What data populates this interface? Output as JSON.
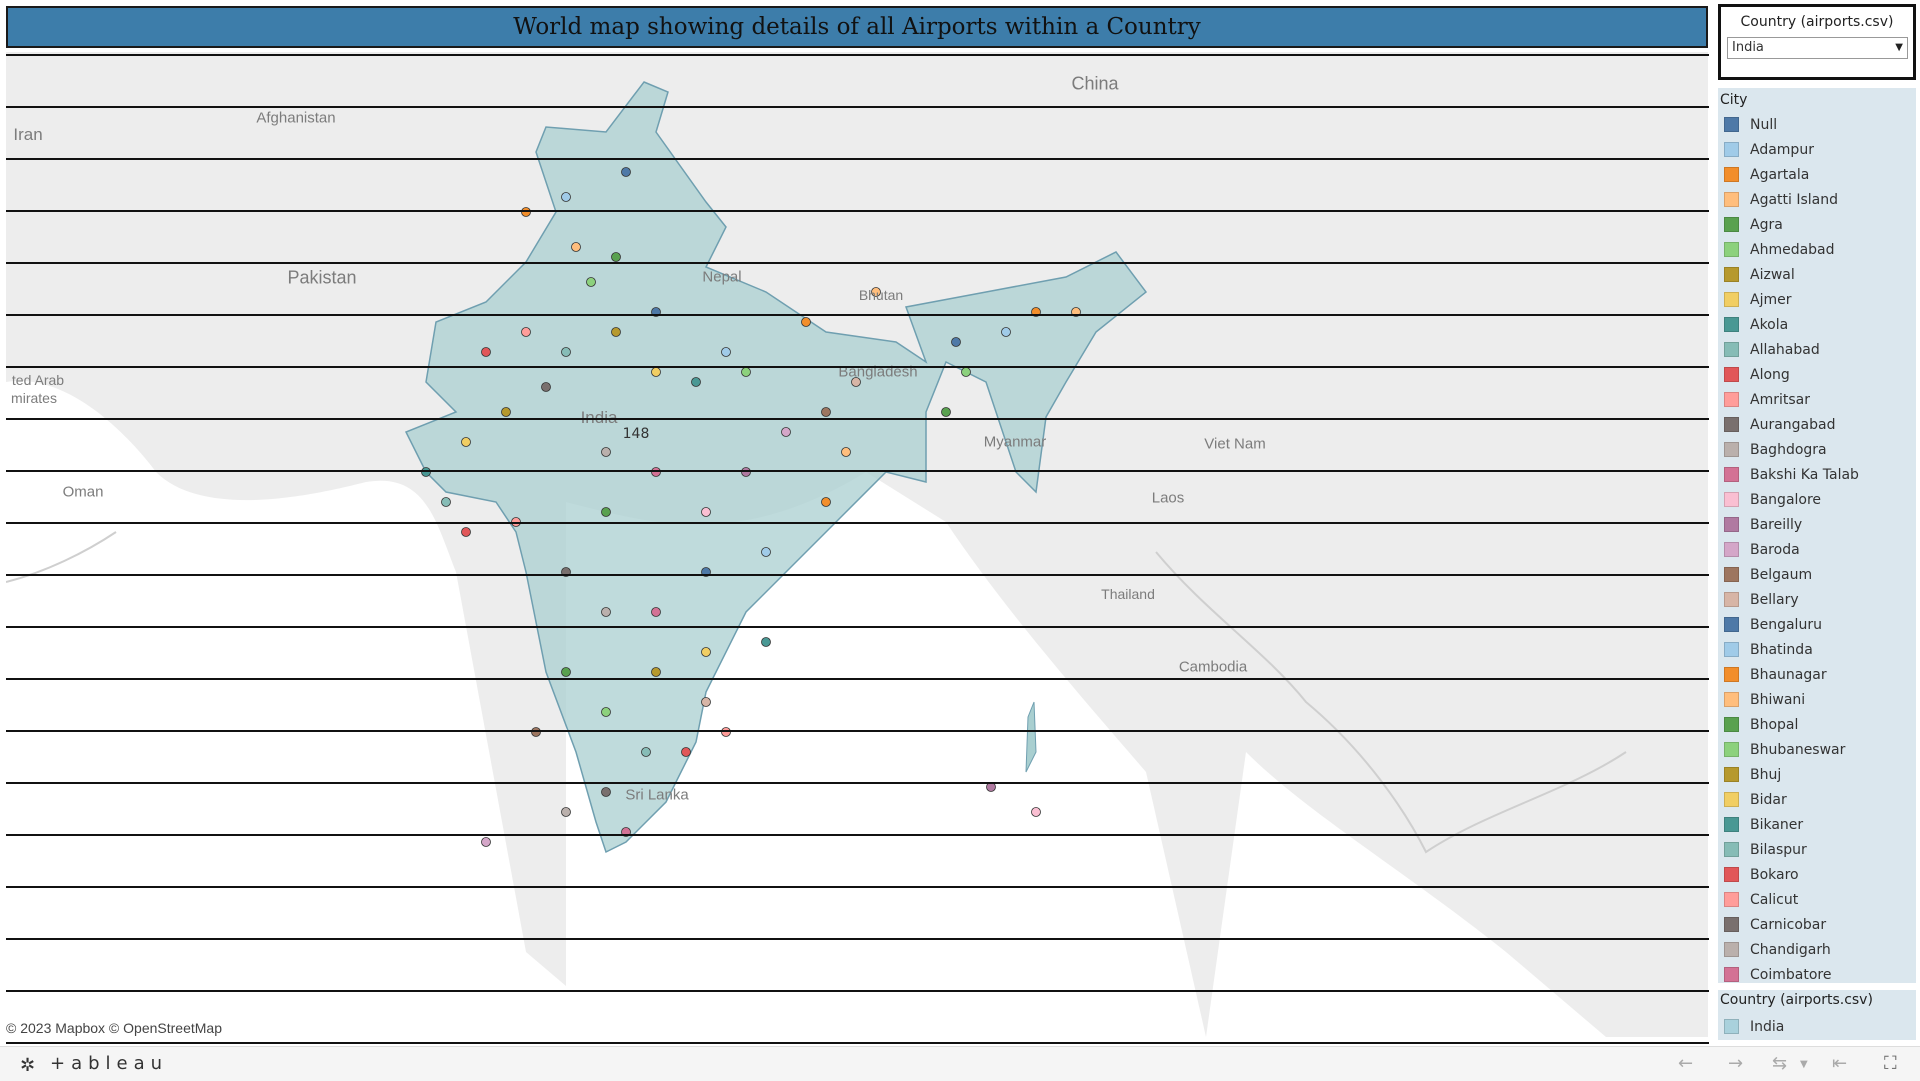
{
  "title": "World map showing details of all Airports within a Country",
  "filter": {
    "label": "Country (airports.csv)",
    "selected": "India"
  },
  "map": {
    "mark_count": "148",
    "attribution": "© 2023 Mapbox  © OpenStreetMap",
    "labels": [
      "Iran",
      "Afghanistan",
      "Pakistan",
      "China",
      "Nepal",
      "Bhutan",
      "Bangladesh",
      "India",
      "Myanmar",
      "Viet Nam",
      "Laos",
      "Thailand",
      "Cambodia",
      "Sri Lanka",
      "Oman",
      "ted Arab",
      "mirates"
    ]
  },
  "legend": {
    "title": "City",
    "items": [
      {
        "label": "Null",
        "color": "#4e79a7"
      },
      {
        "label": "Adampur",
        "color": "#a0cbe8"
      },
      {
        "label": "Agartala",
        "color": "#f28e2b"
      },
      {
        "label": "Agatti Island",
        "color": "#ffbe7d"
      },
      {
        "label": "Agra",
        "color": "#59a14f"
      },
      {
        "label": "Ahmedabad",
        "color": "#8cd17d"
      },
      {
        "label": "Aizwal",
        "color": "#b6992d"
      },
      {
        "label": "Ajmer",
        "color": "#f1ce63"
      },
      {
        "label": "Akola",
        "color": "#499894"
      },
      {
        "label": "Allahabad",
        "color": "#86bcb6"
      },
      {
        "label": "Along",
        "color": "#e15759"
      },
      {
        "label": "Amritsar",
        "color": "#ff9d9a"
      },
      {
        "label": "Aurangabad",
        "color": "#79706e"
      },
      {
        "label": "Baghdogra",
        "color": "#bab0ac"
      },
      {
        "label": "Bakshi Ka Talab",
        "color": "#d37295"
      },
      {
        "label": "Bangalore",
        "color": "#fabfd2"
      },
      {
        "label": "Bareilly",
        "color": "#b07aa1"
      },
      {
        "label": "Baroda",
        "color": "#d4a6c8"
      },
      {
        "label": "Belgaum",
        "color": "#9d7660"
      },
      {
        "label": "Bellary",
        "color": "#d7b5a6"
      },
      {
        "label": "Bengaluru",
        "color": "#4e79a7"
      },
      {
        "label": "Bhatinda",
        "color": "#a0cbe8"
      },
      {
        "label": "Bhaunagar",
        "color": "#f28e2b"
      },
      {
        "label": "Bhiwani",
        "color": "#ffbe7d"
      },
      {
        "label": "Bhopal",
        "color": "#59a14f"
      },
      {
        "label": "Bhubaneswar",
        "color": "#8cd17d"
      },
      {
        "label": "Bhuj",
        "color": "#b6992d"
      },
      {
        "label": "Bidar",
        "color": "#f1ce63"
      },
      {
        "label": "Bikaner",
        "color": "#499894"
      },
      {
        "label": "Bilaspur",
        "color": "#86bcb6"
      },
      {
        "label": "Bokaro",
        "color": "#e15759"
      },
      {
        "label": "Calicut",
        "color": "#ff9d9a"
      },
      {
        "label": "Carnicobar",
        "color": "#79706e"
      },
      {
        "label": "Chandigarh",
        "color": "#bab0ac"
      },
      {
        "label": "Coimbatore",
        "color": "#d37295"
      }
    ]
  },
  "legend2": {
    "title": "Country (airports.csv)",
    "items": [
      {
        "label": "India",
        "color": "#a9d1dc"
      }
    ]
  },
  "footer": {
    "brand": "+ableau"
  }
}
